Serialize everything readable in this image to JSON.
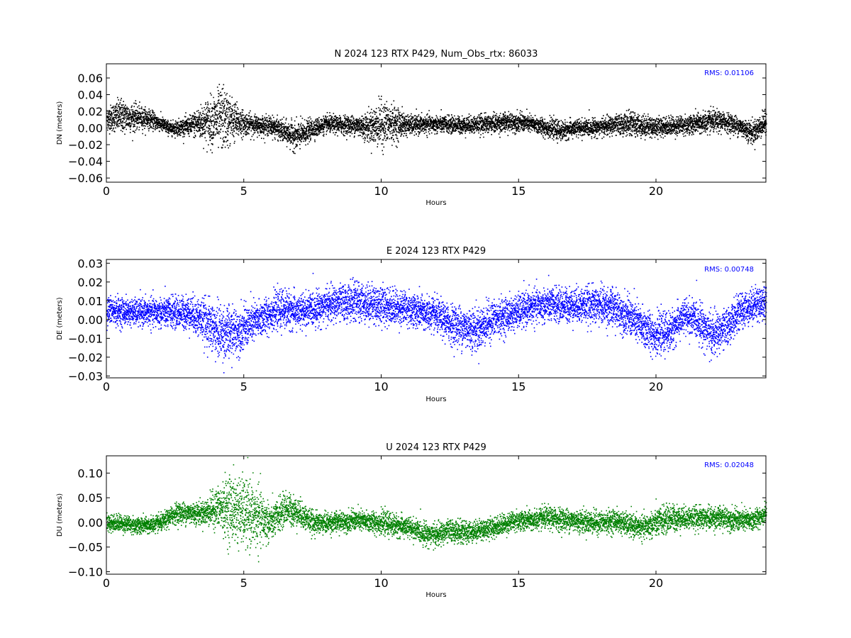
{
  "chart_data": [
    {
      "type": "scatter",
      "title": "N 2024 123 RTX  P429, Num_Obs_rtx: 86033",
      "xlabel": "Hours",
      "ylabel": "DN (meters)",
      "xlim": [
        0,
        24
      ],
      "ylim": [
        -0.065,
        0.077
      ],
      "xticks": [
        0,
        5,
        10,
        15,
        20
      ],
      "xtick_labels": [
        "0",
        "5",
        "10",
        "15",
        "20"
      ],
      "yticks": [
        -0.06,
        -0.04,
        -0.02,
        0.0,
        0.02,
        0.04,
        0.06
      ],
      "ytick_labels": [
        "−0.06",
        "−0.04",
        "−0.02",
        "0.00",
        "0.02",
        "0.04",
        "0.06"
      ],
      "rms_label": "RMS:  0.01106",
      "color": "#000000",
      "rms_color": "#0000ff",
      "grid": false,
      "series": [
        {
          "x": [
            0,
            0.5,
            1.0,
            1.5,
            2.0,
            2.3,
            3.0,
            3.5,
            4.0,
            4.2,
            4.5,
            5.0,
            5.5,
            6.0,
            6.5,
            6.9,
            7.5,
            8.0,
            9.0,
            9.5,
            10.0,
            10.5,
            11.0,
            12.0,
            13.0,
            14.0,
            14.9,
            15.5,
            16.5,
            17.0,
            18.0,
            19.0,
            19.5,
            20.0,
            21.0,
            22.0,
            22.5,
            23.0,
            23.5,
            24.0
          ],
          "center": [
            0.012,
            0.015,
            0.013,
            0.012,
            0.005,
            0.0,
            0.003,
            0.008,
            0.01,
            0.012,
            0.01,
            0.006,
            0.004,
            0.003,
            -0.005,
            -0.01,
            0.0,
            0.005,
            0.004,
            0.002,
            0.005,
            0.006,
            0.004,
            0.005,
            0.004,
            0.006,
            0.008,
            0.005,
            -0.003,
            0.0,
            0.002,
            0.006,
            0.003,
            0.002,
            0.004,
            0.008,
            0.008,
            0.003,
            -0.005,
            0.008
          ],
          "spread": [
            0.012,
            0.018,
            0.014,
            0.01,
            0.008,
            0.007,
            0.01,
            0.02,
            0.03,
            0.035,
            0.025,
            0.012,
            0.01,
            0.01,
            0.012,
            0.015,
            0.01,
            0.009,
            0.01,
            0.015,
            0.025,
            0.018,
            0.01,
            0.009,
            0.009,
            0.01,
            0.01,
            0.009,
            0.01,
            0.009,
            0.009,
            0.012,
            0.012,
            0.01,
            0.01,
            0.012,
            0.01,
            0.01,
            0.012,
            0.012
          ]
        }
      ]
    },
    {
      "type": "scatter",
      "title": "E 2024 123 RTX  P429",
      "xlabel": "Hours",
      "ylabel": "DE (meters)",
      "xlim": [
        0,
        24
      ],
      "ylim": [
        -0.031,
        0.032
      ],
      "xticks": [
        0,
        5,
        10,
        15,
        20
      ],
      "xtick_labels": [
        "0",
        "5",
        "10",
        "15",
        "20"
      ],
      "yticks": [
        -0.03,
        -0.02,
        -0.01,
        0.0,
        0.01,
        0.02,
        0.03
      ],
      "ytick_labels": [
        "−0.03",
        "−0.02",
        "−0.01",
        "0.00",
        "0.01",
        "0.02",
        "0.03"
      ],
      "rms_label": "RMS:  0.00748",
      "color": "#0000ff",
      "rms_color": "#0000ff",
      "grid": false,
      "series": [
        {
          "x": [
            0,
            1.0,
            2.0,
            3.0,
            3.5,
            4.0,
            4.5,
            5.0,
            5.5,
            6.0,
            6.5,
            7.0,
            8.0,
            9.0,
            10.0,
            11.0,
            12.0,
            12.5,
            13.0,
            13.5,
            14.0,
            14.9,
            15.5,
            16.0,
            17.0,
            18.0,
            18.5,
            19.0,
            19.5,
            20.0,
            20.5,
            21.0,
            21.5,
            22.0,
            22.5,
            23.0,
            23.5,
            24.0
          ],
          "center": [
            0.005,
            0.004,
            0.004,
            0.004,
            0.0,
            -0.006,
            -0.007,
            -0.004,
            0.0,
            0.004,
            0.006,
            0.004,
            0.008,
            0.01,
            0.008,
            0.006,
            0.002,
            -0.002,
            -0.004,
            -0.005,
            0.0,
            0.004,
            0.007,
            0.008,
            0.008,
            0.008,
            0.006,
            0.002,
            -0.004,
            -0.008,
            -0.006,
            0.002,
            0.0,
            -0.008,
            -0.005,
            0.004,
            0.008,
            0.01
          ],
          "spread": [
            0.007,
            0.006,
            0.007,
            0.008,
            0.01,
            0.013,
            0.012,
            0.01,
            0.009,
            0.008,
            0.009,
            0.008,
            0.008,
            0.009,
            0.009,
            0.008,
            0.008,
            0.009,
            0.01,
            0.01,
            0.009,
            0.008,
            0.008,
            0.008,
            0.008,
            0.009,
            0.009,
            0.009,
            0.01,
            0.009,
            0.009,
            0.008,
            0.009,
            0.01,
            0.009,
            0.008,
            0.008,
            0.008
          ]
        }
      ]
    },
    {
      "type": "scatter",
      "title": "U 2024 123 RTX  P429",
      "xlabel": "Hours",
      "ylabel": "DU (meters)",
      "xlim": [
        0,
        24
      ],
      "ylim": [
        -0.105,
        0.135
      ],
      "xticks": [
        0,
        5,
        10,
        15,
        20
      ],
      "xtick_labels": [
        "0",
        "5",
        "10",
        "15",
        "20"
      ],
      "yticks": [
        -0.1,
        -0.05,
        0.0,
        0.05,
        0.1
      ],
      "ytick_labels": [
        "−0.10",
        "−0.05",
        "0.00",
        "0.05",
        "0.10"
      ],
      "rms_label": "RMS:  0.02048",
      "color": "#008000",
      "rms_color": "#0000ff",
      "grid": false,
      "series": [
        {
          "x": [
            0,
            0.5,
            1.0,
            1.5,
            2.0,
            2.5,
            3.0,
            3.5,
            4.0,
            4.5,
            5.0,
            5.5,
            6.0,
            6.5,
            7.0,
            7.5,
            8.0,
            9.0,
            10.0,
            10.5,
            11.0,
            11.5,
            12.0,
            12.5,
            13.0,
            13.5,
            14.0,
            14.9,
            15.5,
            16.0,
            17.0,
            18.0,
            18.5,
            19.0,
            19.5,
            20.0,
            20.5,
            21.0,
            22.0,
            22.5,
            23.0,
            23.5,
            24.0
          ],
          "center": [
            0.0,
            0.0,
            -0.005,
            -0.005,
            0.0,
            0.02,
            0.02,
            0.02,
            0.03,
            0.03,
            0.02,
            0.01,
            0.0,
            0.03,
            0.02,
            0.0,
            0.0,
            0.005,
            0.0,
            -0.005,
            -0.01,
            -0.02,
            -0.025,
            -0.015,
            -0.02,
            -0.015,
            -0.01,
            0.005,
            0.005,
            0.01,
            0.005,
            0.0,
            0.005,
            -0.005,
            -0.01,
            0.0,
            0.01,
            0.01,
            0.01,
            0.01,
            0.005,
            0.005,
            0.02
          ],
          "spread": [
            0.015,
            0.015,
            0.015,
            0.015,
            0.015,
            0.018,
            0.02,
            0.02,
            0.035,
            0.06,
            0.06,
            0.055,
            0.03,
            0.03,
            0.025,
            0.02,
            0.018,
            0.018,
            0.02,
            0.02,
            0.018,
            0.02,
            0.02,
            0.02,
            0.02,
            0.018,
            0.018,
            0.018,
            0.018,
            0.02,
            0.02,
            0.02,
            0.02,
            0.02,
            0.02,
            0.025,
            0.025,
            0.02,
            0.02,
            0.02,
            0.02,
            0.02,
            0.015
          ]
        }
      ]
    }
  ]
}
